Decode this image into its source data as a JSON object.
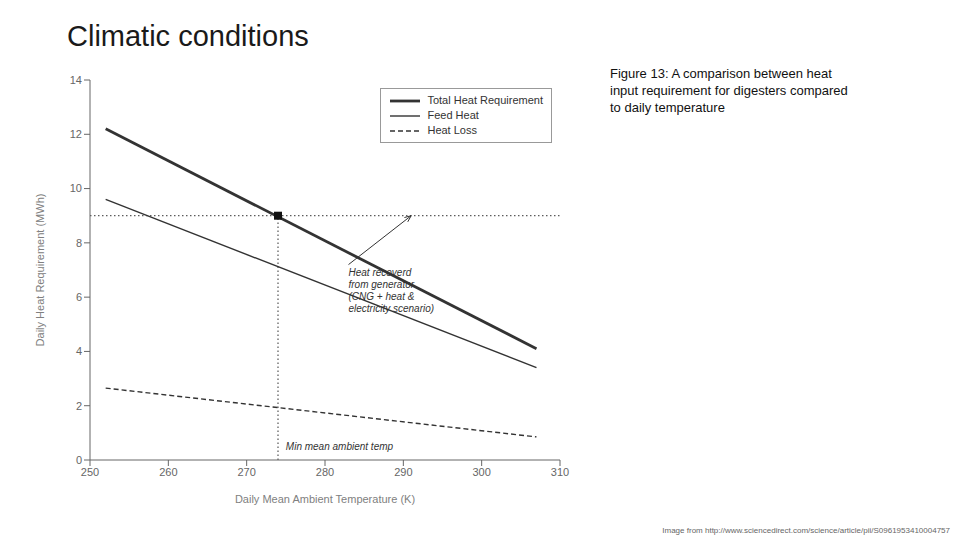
{
  "chart_data": {
    "type": "line",
    "title": "Climatic conditions",
    "subtitle": "Figure 13: A comparison between heat\ninput requirement for digesters compared\nto daily temperature",
    "footnote": "Image from http://www.sciencedirect.com/science/article/pii/S0961953410004757",
    "xlabel": "Daily Mean Ambient Temperature (K)",
    "ylabel": "Daily Heat Requirement (MWh)",
    "xlim": [
      250,
      310
    ],
    "ylim": [
      0,
      14
    ],
    "xticks": [
      250,
      260,
      270,
      280,
      290,
      300,
      310
    ],
    "yticks": [
      0,
      2,
      4,
      6,
      8,
      10,
      12,
      14
    ],
    "grid": false,
    "legend": "upper right",
    "x": [
      252,
      307
    ],
    "series": [
      {
        "name": "Total Heat Requirement",
        "color": "#333333",
        "line_style": "solid",
        "values": [
          12.2,
          4.1
        ]
      },
      {
        "name": "Feed Heat",
        "color": "#333333",
        "line_style": "solid",
        "values": [
          9.6,
          3.4
        ]
      },
      {
        "name": "Heat Loss",
        "color": "#333333",
        "line_style": "dashed",
        "values": [
          2.65,
          0.85
        ]
      }
    ],
    "reference_lines": [
      {
        "axis": "y",
        "value": 9.0,
        "color": "#333333",
        "line_style": "dotted"
      },
      {
        "axis": "x",
        "value": 274,
        "from": 0,
        "to": 9.0,
        "color": "#333333",
        "line_style": "dotted"
      }
    ],
    "points": [
      {
        "x": 274,
        "y": 9.0,
        "marker": "square",
        "color": "#111111"
      }
    ],
    "annotations": [
      {
        "text": "Min mean ambient temp",
        "x": 275,
        "y": 0.25
      },
      {
        "text": "Heat recoverd\nfrom generator\n(CNG + heat &\nelectricity scenario)",
        "x": 283,
        "y": 7.2,
        "arrow_x": 291,
        "arrow_y": 9.0
      }
    ]
  }
}
